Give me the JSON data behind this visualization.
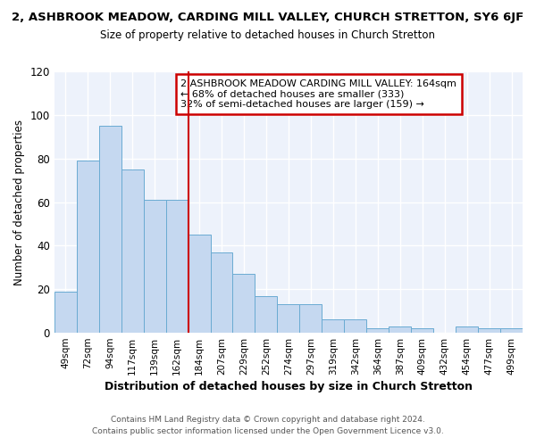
{
  "title": "2, ASHBROOK MEADOW, CARDING MILL VALLEY, CHURCH STRETTON, SY6 6JF",
  "subtitle": "Size of property relative to detached houses in Church Stretton",
  "xlabel": "Distribution of detached houses by size in Church Stretton",
  "ylabel": "Number of detached properties",
  "categories": [
    "49sqm",
    "72sqm",
    "94sqm",
    "117sqm",
    "139sqm",
    "162sqm",
    "184sqm",
    "207sqm",
    "229sqm",
    "252sqm",
    "274sqm",
    "297sqm",
    "319sqm",
    "342sqm",
    "364sqm",
    "387sqm",
    "409sqm",
    "432sqm",
    "454sqm",
    "477sqm",
    "499sqm"
  ],
  "values": [
    19,
    79,
    95,
    75,
    61,
    61,
    45,
    37,
    27,
    17,
    13,
    13,
    6,
    6,
    2,
    3,
    2,
    0,
    3,
    2,
    2
  ],
  "bar_color": "#c5d8f0",
  "bar_edge_color": "#6aabd2",
  "vline_x": 5.5,
  "vline_color": "#cc0000",
  "annotation_title": "2 ASHBROOK MEADOW CARDING MILL VALLEY: 164sqm",
  "annotation_line2": "← 68% of detached houses are smaller (333)",
  "annotation_line3": "32% of semi-detached houses are larger (159) →",
  "annotation_box_color": "#cc0000",
  "ylim": [
    0,
    120
  ],
  "yticks": [
    0,
    20,
    40,
    60,
    80,
    100,
    120
  ],
  "bg_color": "#edf2fb",
  "footer1": "Contains HM Land Registry data © Crown copyright and database right 2024.",
  "footer2": "Contains public sector information licensed under the Open Government Licence v3.0."
}
